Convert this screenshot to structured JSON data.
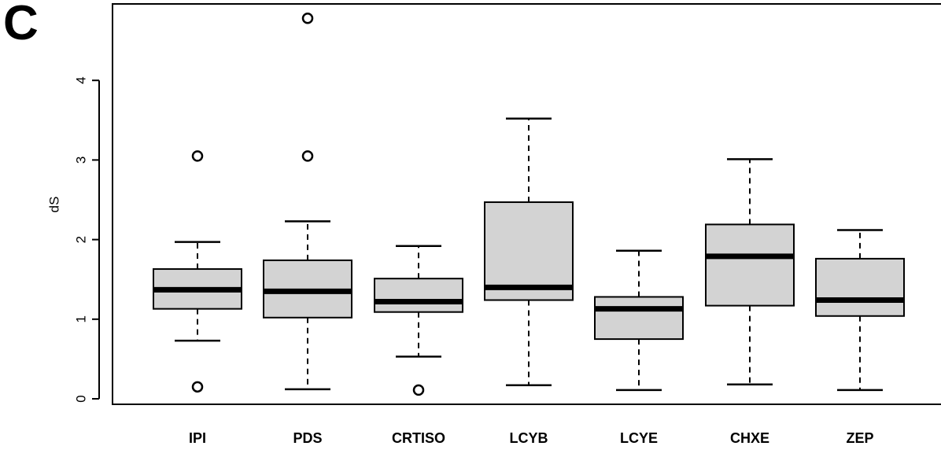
{
  "panel_label": "C",
  "chart_data": {
    "type": "boxplot",
    "title": "",
    "xlabel": "",
    "ylabel": "dS",
    "ylim": [
      0,
      4.9
    ],
    "yticks": [
      0,
      1,
      2,
      3,
      4
    ],
    "grid": false,
    "box_fill": "#d3d3d3",
    "line_color": "#000000",
    "categories": [
      "IPI",
      "PDS",
      "CRTISO",
      "LCYB",
      "LCYE",
      "CHXE",
      "ZEP"
    ],
    "boxes": [
      {
        "label": "IPI",
        "whisker_low": 0.73,
        "q1": 1.13,
        "median": 1.37,
        "q3": 1.63,
        "whisker_high": 1.97,
        "outliers": [
          0.15,
          3.05
        ]
      },
      {
        "label": "PDS",
        "whisker_low": 0.12,
        "q1": 1.02,
        "median": 1.35,
        "q3": 1.74,
        "whisker_high": 2.23,
        "outliers": [
          3.05,
          4.78
        ]
      },
      {
        "label": "CRTISO",
        "whisker_low": 0.53,
        "q1": 1.09,
        "median": 1.22,
        "q3": 1.51,
        "whisker_high": 1.92,
        "outliers": [
          0.11
        ]
      },
      {
        "label": "LCYB",
        "whisker_low": 0.17,
        "q1": 1.24,
        "median": 1.4,
        "q3": 2.47,
        "whisker_high": 3.52,
        "outliers": []
      },
      {
        "label": "LCYE",
        "whisker_low": 0.11,
        "q1": 0.75,
        "median": 1.13,
        "q3": 1.28,
        "whisker_high": 1.86,
        "outliers": []
      },
      {
        "label": "CHXE",
        "whisker_low": 0.18,
        "q1": 1.17,
        "median": 1.79,
        "q3": 2.19,
        "whisker_high": 3.01,
        "outliers": []
      },
      {
        "label": "ZEP",
        "whisker_low": 0.11,
        "q1": 1.04,
        "median": 1.24,
        "q3": 1.76,
        "whisker_high": 2.12,
        "outliers": []
      }
    ]
  }
}
